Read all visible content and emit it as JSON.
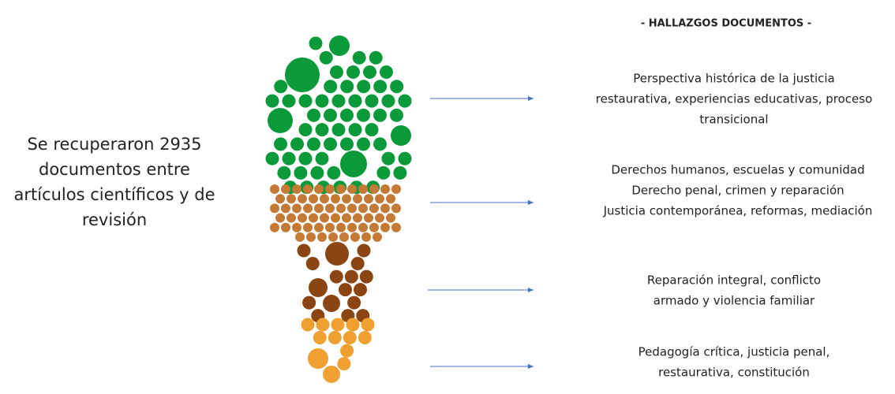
{
  "summary": {
    "lines": [
      "Se recuperaron 2935",
      "documentos entre",
      "artículos científicos y de",
      "revisión"
    ]
  },
  "header": {
    "title": "- HALLAZGOS DOCUMENTOS -"
  },
  "findings": [
    {
      "lines": [
        "Perspectiva histórica de la justicia",
        "restaurativa, experiencias educativas, proceso",
        "transicional"
      ]
    },
    {
      "lines": [
        "Derechos humanos, escuelas y comunidad",
        "Derecho penal, crimen y reparación",
        "Justicia contemporánea, reformas, mediación"
      ]
    },
    {
      "lines": [
        "Reparación integral, conflicto",
        "armado y violencia familiar"
      ]
    },
    {
      "lines": [
        "Pedagogía crítica, justicia penal,",
        "restaurativa, constitución"
      ]
    }
  ]
}
